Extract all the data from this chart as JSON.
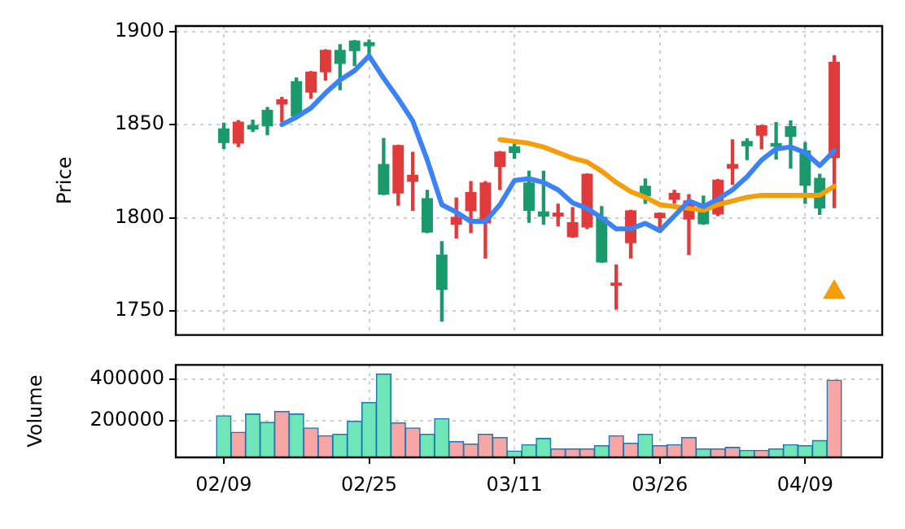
{
  "chart_data": [
    {
      "type": "candlestick",
      "ylabel": "Price",
      "tick_labels": "y",
      "grid": true,
      "ylim": [
        1737,
        1903
      ],
      "yticks": [
        1750,
        1800,
        1850,
        1900
      ],
      "categories": [
        null,
        null,
        null,
        null,
        null,
        null,
        null,
        null,
        null,
        null,
        null,
        null,
        null,
        null,
        null,
        null,
        null,
        null,
        null,
        null,
        null,
        null,
        null,
        null,
        null,
        null,
        null,
        null,
        null,
        null,
        null,
        null,
        null,
        null,
        null,
        null,
        null,
        null,
        null,
        null,
        null,
        null,
        null
      ],
      "ohlc": [
        [
          1840.1,
          1850.8,
          1837.3,
          1848.0
        ],
        [
          1851.6,
          1852.2,
          1838.2,
          1839.8
        ],
        [
          1847.4,
          1852.4,
          1846.3,
          1849.9
        ],
        [
          1849.1,
          1859.2,
          1844.6,
          1858.0
        ],
        [
          1863.6,
          1864.7,
          1851.6,
          1860.8
        ],
        [
          1854.4,
          1875.1,
          1854.4,
          1873.4
        ],
        [
          1878.5,
          1878.5,
          1864.2,
          1867.3
        ],
        [
          1890.2,
          1890.2,
          1874.0,
          1878.2
        ],
        [
          1882.7,
          1893.0,
          1868.9,
          1890.2
        ],
        [
          1889.6,
          1895.2,
          1881.8,
          1895.2
        ],
        [
          1892.2,
          1895.5,
          1888.0,
          1894.4
        ],
        [
          1812.4,
          1842.6,
          1812.4,
          1828.9
        ],
        [
          1839.0,
          1839.0,
          1806.8,
          1813.0
        ],
        [
          1823.1,
          1835.1,
          1804.0,
          1819.4
        ],
        [
          1792.0,
          1814.7,
          1792.0,
          1810.5
        ],
        [
          1761.2,
          1787.2,
          1744.4,
          1780.2
        ],
        [
          1800.4,
          1810.5,
          1789.2,
          1796.2
        ],
        [
          1813.8,
          1819.4,
          1792.0,
          1803.5
        ],
        [
          1818.9,
          1819.4,
          1778.3,
          1797.0
        ],
        [
          1835.6,
          1835.6,
          1815.2,
          1827.3
        ],
        [
          1834.8,
          1840.1,
          1832.0,
          1838.4
        ],
        [
          1803.7,
          1825.0,
          1797.6,
          1818.9
        ],
        [
          1800.6,
          1825.0,
          1796.5,
          1803.4
        ],
        [
          1802.8,
          1807.3,
          1795.6,
          1800.6
        ],
        [
          1797.6,
          1805.4,
          1789.5,
          1789.5
        ],
        [
          1823.6,
          1823.6,
          1794.2,
          1794.8
        ],
        [
          1776.0,
          1806.0,
          1776.0,
          1800.4
        ],
        [
          1765.1,
          1774.6,
          1750.9,
          1763.5
        ],
        [
          1804.0,
          1804.0,
          1778.3,
          1786.4
        ],
        [
          1811.6,
          1820.8,
          1807.7,
          1817.2
        ],
        [
          1802.6,
          1802.6,
          1794.8,
          1799.8
        ],
        [
          1813.3,
          1814.7,
          1807.7,
          1809.6
        ],
        [
          1809.3,
          1812.4,
          1780.2,
          1799.0
        ],
        [
          1796.5,
          1811.6,
          1796.5,
          1806.0
        ],
        [
          1820.5,
          1820.5,
          1801.2,
          1801.8
        ],
        [
          1828.9,
          1841.8,
          1818.0,
          1826.4
        ],
        [
          1838.4,
          1842.4,
          1831.2,
          1841.2
        ],
        [
          1849.7,
          1849.7,
          1837.0,
          1844.1
        ],
        [
          1838.2,
          1851.1,
          1831.6,
          1840.1
        ],
        [
          1843.4,
          1852.0,
          1826.6,
          1849.2
        ],
        [
          1817.2,
          1840.4,
          1807.7,
          1836.2
        ],
        [
          1804.9,
          1823.3,
          1801.8,
          1821.4
        ],
        [
          1883.8,
          1887.1,
          1805.4,
          1832.0
        ]
      ],
      "colors": [
        "#1a9a6c",
        "#e03a3a",
        "#1a9a6c",
        "#1a9a6c",
        "#e03a3a",
        "#1a9a6c",
        "#e03a3a",
        "#e03a3a",
        "#1a9a6c",
        "#1a9a6c",
        "#1a9a6c",
        "#1a9a6c",
        "#e03a3a",
        "#e03a3a",
        "#1a9a6c",
        "#1a9a6c",
        "#e03a3a",
        "#e03a3a",
        "#e03a3a",
        "#e03a3a",
        "#1a9a6c",
        "#1a9a6c",
        "#1a9a6c",
        "#e03a3a",
        "#e03a3a",
        "#e03a3a",
        "#1a9a6c",
        "#e03a3a",
        "#e03a3a",
        "#1a9a6c",
        "#e03a3a",
        "#e03a3a",
        "#e03a3a",
        "#1a9a6c",
        "#e03a3a",
        "#e03a3a",
        "#1a9a6c",
        "#e03a3a",
        "#1a9a6c",
        "#1a9a6c",
        "#1a9a6c",
        "#1a9a6c",
        "#e03a3a"
      ],
      "series": [
        {
          "type": "line",
          "color": "#3b82f6",
          "values": [
            null,
            null,
            null,
            null,
            1850,
            1854,
            1859,
            1867,
            1874,
            1879,
            1887,
            1875,
            1864,
            1852,
            1831,
            1807,
            1803,
            1798,
            1798,
            1807,
            1820,
            1821,
            1819,
            1815,
            1808,
            1805,
            1800,
            1794,
            1794,
            1797,
            1793,
            1801,
            1809,
            1806,
            1810,
            1815,
            1822,
            1831,
            1837,
            1838,
            1835,
            1828,
            1836
          ]
        },
        {
          "type": "line",
          "color": "#f59e0b",
          "values": [
            null,
            null,
            null,
            null,
            null,
            null,
            null,
            null,
            null,
            null,
            null,
            null,
            null,
            null,
            null,
            null,
            null,
            null,
            null,
            1842,
            1841,
            1840,
            1838,
            1835,
            1832,
            1830,
            1825,
            1819,
            1814,
            1811,
            1807,
            1806,
            1805,
            1804,
            1807,
            1809,
            1811,
            1812,
            1812,
            1812,
            1812,
            1812,
            1817
          ]
        },
        {
          "type": "scatter",
          "color": "#f59e0b",
          "marker": "triangle",
          "values": [
            null,
            null,
            null,
            null,
            null,
            null,
            null,
            null,
            null,
            null,
            null,
            null,
            null,
            null,
            null,
            null,
            null,
            null,
            null,
            null,
            null,
            null,
            null,
            null,
            null,
            null,
            null,
            null,
            null,
            null,
            null,
            null,
            null,
            null,
            null,
            null,
            null,
            null,
            null,
            null,
            null,
            null,
            1760
          ]
        }
      ]
    },
    {
      "type": "bar",
      "ylabel": "Volume",
      "grid": true,
      "ylim": [
        24000,
        468000
      ],
      "yticks": [
        200000,
        400000
      ],
      "categories": [
        "02/09",
        null,
        null,
        null,
        null,
        null,
        null,
        null,
        null,
        null,
        "02/25",
        null,
        null,
        null,
        null,
        null,
        null,
        null,
        null,
        null,
        "03/11",
        null,
        null,
        null,
        null,
        null,
        null,
        null,
        null,
        null,
        "03/26",
        null,
        null,
        null,
        null,
        null,
        null,
        null,
        null,
        null,
        "04/09",
        null,
        null
      ],
      "values": [
        224000,
        145000,
        232000,
        192000,
        245000,
        232000,
        165000,
        128000,
        135000,
        198000,
        288000,
        424000,
        190000,
        165000,
        135000,
        210000,
        100000,
        88000,
        135000,
        120000,
        55000,
        85000,
        115000,
        65000,
        65000,
        65000,
        80000,
        128000,
        92000,
        135000,
        80000,
        85000,
        120000,
        65000,
        65000,
        72000,
        58000,
        58000,
        65000,
        85000,
        80000,
        105000,
        395000
      ],
      "colors": [
        "#6ee6b8",
        "#f8a5a5",
        "#6ee6b8",
        "#6ee6b8",
        "#f8a5a5",
        "#6ee6b8",
        "#f8a5a5",
        "#f8a5a5",
        "#6ee6b8",
        "#6ee6b8",
        "#6ee6b8",
        "#6ee6b8",
        "#f8a5a5",
        "#f8a5a5",
        "#6ee6b8",
        "#6ee6b8",
        "#f8a5a5",
        "#f8a5a5",
        "#f8a5a5",
        "#f8a5a5",
        "#6ee6b8",
        "#6ee6b8",
        "#6ee6b8",
        "#f8a5a5",
        "#f8a5a5",
        "#f8a5a5",
        "#6ee6b8",
        "#f8a5a5",
        "#f8a5a5",
        "#6ee6b8",
        "#f8a5a5",
        "#f8a5a5",
        "#f8a5a5",
        "#6ee6b8",
        "#f8a5a5",
        "#f8a5a5",
        "#6ee6b8",
        "#f8a5a5",
        "#6ee6b8",
        "#6ee6b8",
        "#6ee6b8",
        "#6ee6b8",
        "#f8a5a5"
      ]
    }
  ]
}
